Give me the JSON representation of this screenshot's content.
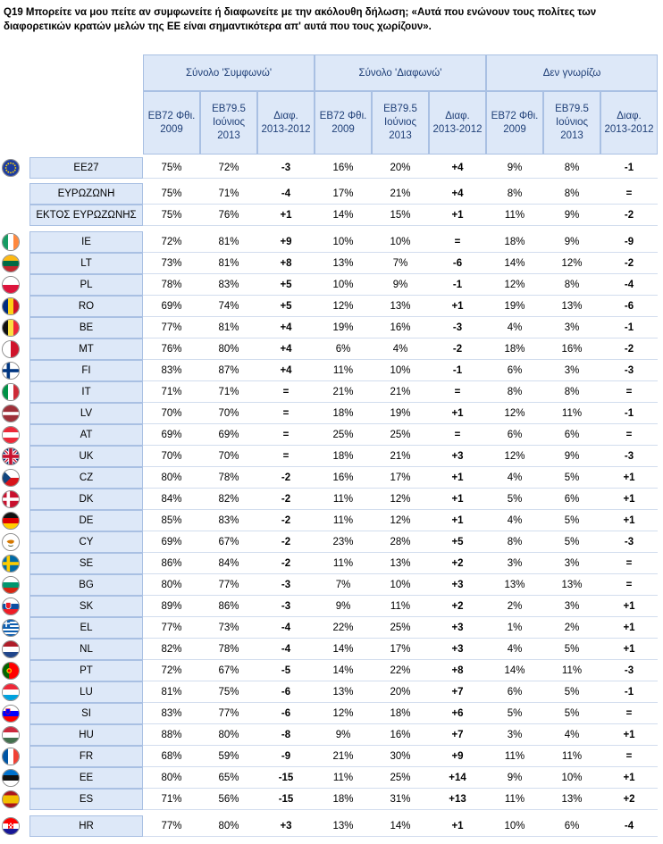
{
  "question": "Q19 Μπορείτε να μου πείτε αν συμφωνείτε ή διαφωνείτε με την ακόλουθη δήλωση; «Αυτά που ενώνουν τους πολίτες των διαφορετικών κρατών μελών της ΕΕ είναι σημαντικότερα απ' αυτά που τους χωρίζουν».",
  "groups": [
    "Σύνολο 'Συμφωνώ'",
    "Σύνολο 'Διαφωνώ'",
    "Δεν γνωρίζω"
  ],
  "subheaders": [
    "ΕΒ72 Φθι. 2009",
    "ΕΒ79.5 Ιούνιος 2013",
    "Διαφ. 2013-2012"
  ],
  "rows": [
    {
      "label": "EE27",
      "flag": "eu-flag-icon",
      "values": [
        "75%",
        "72%",
        "-3",
        "16%",
        "20%",
        "+4",
        "9%",
        "8%",
        "-1"
      ]
    },
    {
      "label": "ΕΥΡΩΖΩΝΗ",
      "flag": "",
      "values": [
        "75%",
        "71%",
        "-4",
        "17%",
        "21%",
        "+4",
        "8%",
        "8%",
        "="
      ]
    },
    {
      "label": "ΕΚΤΟΣ ΕΥΡΩΖΩΝΗΣ",
      "flag": "",
      "values": [
        "75%",
        "76%",
        "+1",
        "14%",
        "15%",
        "+1",
        "11%",
        "9%",
        "-2"
      ]
    },
    {
      "label": "IE",
      "flag": "ie-flag-icon",
      "values": [
        "72%",
        "81%",
        "+9",
        "10%",
        "10%",
        "=",
        "18%",
        "9%",
        "-9"
      ]
    },
    {
      "label": "LT",
      "flag": "lt-flag-icon",
      "values": [
        "73%",
        "81%",
        "+8",
        "13%",
        "7%",
        "-6",
        "14%",
        "12%",
        "-2"
      ]
    },
    {
      "label": "PL",
      "flag": "pl-flag-icon",
      "values": [
        "78%",
        "83%",
        "+5",
        "10%",
        "9%",
        "-1",
        "12%",
        "8%",
        "-4"
      ]
    },
    {
      "label": "RO",
      "flag": "ro-flag-icon",
      "values": [
        "69%",
        "74%",
        "+5",
        "12%",
        "13%",
        "+1",
        "19%",
        "13%",
        "-6"
      ]
    },
    {
      "label": "BE",
      "flag": "be-flag-icon",
      "values": [
        "77%",
        "81%",
        "+4",
        "19%",
        "16%",
        "-3",
        "4%",
        "3%",
        "-1"
      ]
    },
    {
      "label": "MT",
      "flag": "mt-flag-icon",
      "values": [
        "76%",
        "80%",
        "+4",
        "6%",
        "4%",
        "-2",
        "18%",
        "16%",
        "-2"
      ]
    },
    {
      "label": "FI",
      "flag": "fi-flag-icon",
      "values": [
        "83%",
        "87%",
        "+4",
        "11%",
        "10%",
        "-1",
        "6%",
        "3%",
        "-3"
      ]
    },
    {
      "label": "IT",
      "flag": "it-flag-icon",
      "values": [
        "71%",
        "71%",
        "=",
        "21%",
        "21%",
        "=",
        "8%",
        "8%",
        "="
      ]
    },
    {
      "label": "LV",
      "flag": "lv-flag-icon",
      "values": [
        "70%",
        "70%",
        "=",
        "18%",
        "19%",
        "+1",
        "12%",
        "11%",
        "-1"
      ]
    },
    {
      "label": "AT",
      "flag": "at-flag-icon",
      "values": [
        "69%",
        "69%",
        "=",
        "25%",
        "25%",
        "=",
        "6%",
        "6%",
        "="
      ]
    },
    {
      "label": "UK",
      "flag": "uk-flag-icon",
      "values": [
        "70%",
        "70%",
        "=",
        "18%",
        "21%",
        "+3",
        "12%",
        "9%",
        "-3"
      ]
    },
    {
      "label": "CZ",
      "flag": "cz-flag-icon",
      "values": [
        "80%",
        "78%",
        "-2",
        "16%",
        "17%",
        "+1",
        "4%",
        "5%",
        "+1"
      ]
    },
    {
      "label": "DK",
      "flag": "dk-flag-icon",
      "values": [
        "84%",
        "82%",
        "-2",
        "11%",
        "12%",
        "+1",
        "5%",
        "6%",
        "+1"
      ]
    },
    {
      "label": "DE",
      "flag": "de-flag-icon",
      "values": [
        "85%",
        "83%",
        "-2",
        "11%",
        "12%",
        "+1",
        "4%",
        "5%",
        "+1"
      ]
    },
    {
      "label": "CY",
      "flag": "cy-flag-icon",
      "values": [
        "69%",
        "67%",
        "-2",
        "23%",
        "28%",
        "+5",
        "8%",
        "5%",
        "-3"
      ]
    },
    {
      "label": "SE",
      "flag": "se-flag-icon",
      "values": [
        "86%",
        "84%",
        "-2",
        "11%",
        "13%",
        "+2",
        "3%",
        "3%",
        "="
      ]
    },
    {
      "label": "BG",
      "flag": "bg-flag-icon",
      "values": [
        "80%",
        "77%",
        "-3",
        "7%",
        "10%",
        "+3",
        "13%",
        "13%",
        "="
      ]
    },
    {
      "label": "SK",
      "flag": "sk-flag-icon",
      "values": [
        "89%",
        "86%",
        "-3",
        "9%",
        "11%",
        "+2",
        "2%",
        "3%",
        "+1"
      ]
    },
    {
      "label": "EL",
      "flag": "el-flag-icon",
      "values": [
        "77%",
        "73%",
        "-4",
        "22%",
        "25%",
        "+3",
        "1%",
        "2%",
        "+1"
      ]
    },
    {
      "label": "NL",
      "flag": "nl-flag-icon",
      "values": [
        "82%",
        "78%",
        "-4",
        "14%",
        "17%",
        "+3",
        "4%",
        "5%",
        "+1"
      ]
    },
    {
      "label": "PT",
      "flag": "pt-flag-icon",
      "values": [
        "72%",
        "67%",
        "-5",
        "14%",
        "22%",
        "+8",
        "14%",
        "11%",
        "-3"
      ]
    },
    {
      "label": "LU",
      "flag": "lu-flag-icon",
      "values": [
        "81%",
        "75%",
        "-6",
        "13%",
        "20%",
        "+7",
        "6%",
        "5%",
        "-1"
      ]
    },
    {
      "label": "SI",
      "flag": "si-flag-icon",
      "values": [
        "83%",
        "77%",
        "-6",
        "12%",
        "18%",
        "+6",
        "5%",
        "5%",
        "="
      ]
    },
    {
      "label": "HU",
      "flag": "hu-flag-icon",
      "values": [
        "88%",
        "80%",
        "-8",
        "9%",
        "16%",
        "+7",
        "3%",
        "4%",
        "+1"
      ]
    },
    {
      "label": "FR",
      "flag": "fr-flag-icon",
      "values": [
        "68%",
        "59%",
        "-9",
        "21%",
        "30%",
        "+9",
        "11%",
        "11%",
        "="
      ]
    },
    {
      "label": "EE",
      "flag": "ee-flag-icon",
      "values": [
        "80%",
        "65%",
        "-15",
        "11%",
        "25%",
        "+14",
        "9%",
        "10%",
        "+1"
      ]
    },
    {
      "label": "ES",
      "flag": "es-flag-icon",
      "values": [
        "71%",
        "56%",
        "-15",
        "18%",
        "31%",
        "+13",
        "11%",
        "13%",
        "+2"
      ]
    },
    {
      "label": "HR",
      "flag": "hr-flag-icon",
      "values": [
        "77%",
        "80%",
        "+3",
        "13%",
        "14%",
        "+1",
        "10%",
        "6%",
        "-4"
      ]
    }
  ]
}
